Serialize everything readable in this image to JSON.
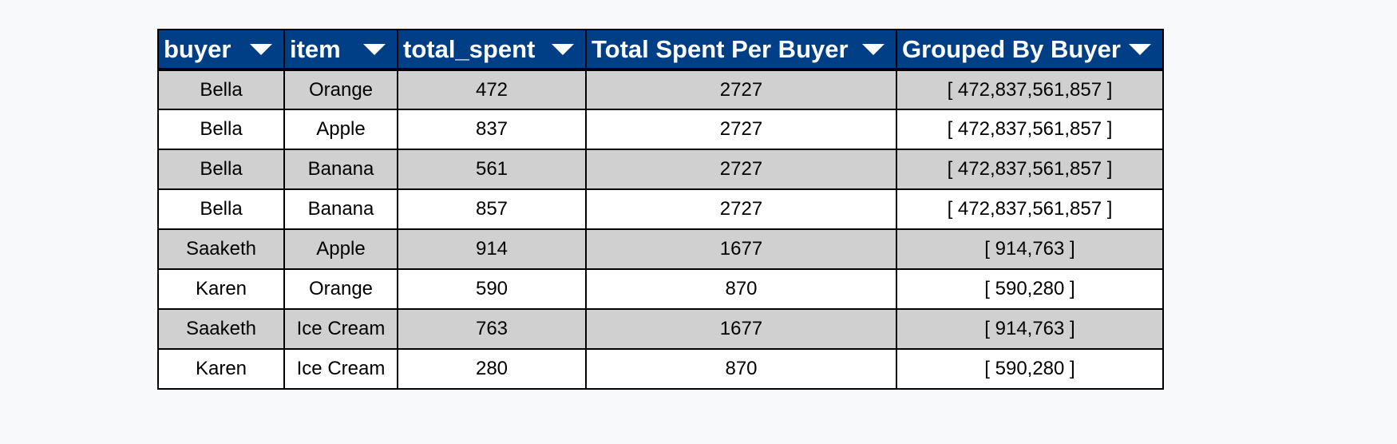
{
  "table": {
    "columns": [
      {
        "label": "buyer",
        "key": "buyer"
      },
      {
        "label": "item",
        "key": "item"
      },
      {
        "label": "total_spent",
        "key": "total_spent"
      },
      {
        "label": "Total Spent Per Buyer",
        "key": "total_per_buyer"
      },
      {
        "label": "Grouped By Buyer",
        "key": "grouped"
      }
    ],
    "rows": [
      {
        "buyer": "Bella",
        "item": "Orange",
        "total_spent": "472",
        "total_per_buyer": "2727",
        "grouped": "[ 472,837,561,857 ]"
      },
      {
        "buyer": "Bella",
        "item": "Apple",
        "total_spent": "837",
        "total_per_buyer": "2727",
        "grouped": "[ 472,837,561,857 ]"
      },
      {
        "buyer": "Bella",
        "item": "Banana",
        "total_spent": "561",
        "total_per_buyer": "2727",
        "grouped": "[ 472,837,561,857 ]"
      },
      {
        "buyer": "Bella",
        "item": "Banana",
        "total_spent": "857",
        "total_per_buyer": "2727",
        "grouped": "[ 472,837,561,857 ]"
      },
      {
        "buyer": "Saaketh",
        "item": "Apple",
        "total_spent": "914",
        "total_per_buyer": "1677",
        "grouped": "[ 914,763 ]"
      },
      {
        "buyer": "Karen",
        "item": "Orange",
        "total_spent": "590",
        "total_per_buyer": "870",
        "grouped": "[ 590,280 ]"
      },
      {
        "buyer": "Saaketh",
        "item": "Ice Cream",
        "total_spent": "763",
        "total_per_buyer": "1677",
        "grouped": "[ 914,763 ]"
      },
      {
        "buyer": "Karen",
        "item": "Ice Cream",
        "total_spent": "280",
        "total_per_buyer": "870",
        "grouped": "[ 590,280 ]"
      }
    ]
  },
  "icons": {
    "column_menu": "caret-down-icon"
  },
  "colors": {
    "header_bg": "#003f86",
    "header_text": "#ffffff",
    "row_shaded": "#d0d0d0",
    "row_plain": "#ffffff",
    "page_bg": "#f8f9fb"
  }
}
